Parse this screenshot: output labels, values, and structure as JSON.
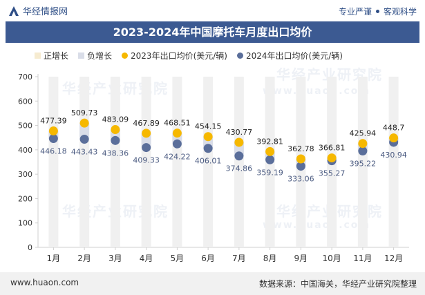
{
  "header": {
    "brand": "华经情报网",
    "tagline_left": "专业严谨",
    "tagline_right": "客观科学"
  },
  "footer": {
    "website": "www.huaon.com",
    "source": "数据来源：中国海关，华经产业研究院整理"
  },
  "watermark": {
    "text": "华经产业研究院",
    "url": "www.huaon.com"
  },
  "colors": {
    "title_bg": "#3c5a92",
    "positive_bar": "#f6ebd0",
    "negative_bar": "#d9dde8",
    "series_2023": "#f6b800",
    "series_2024": "#5a6e9a"
  },
  "chart_data": {
    "type": "line",
    "title": "2023-2024年中国摩托车月度出口均价",
    "categories": [
      "1月",
      "2月",
      "3月",
      "4月",
      "5月",
      "6月",
      "7月",
      "8月",
      "9月",
      "10月",
      "11月",
      "12月"
    ],
    "ylim": [
      0,
      700
    ],
    "yticks": [
      0,
      100,
      200,
      300,
      400,
      500,
      600,
      700
    ],
    "grid": false,
    "legend_position": "top-left",
    "legend": [
      "正增长",
      "负增长",
      "2023年出口均价(美元/辆)",
      "2024年出口均价(美元/辆)"
    ],
    "series": [
      {
        "name": "2023年出口均价(美元/辆)",
        "values": [
          477.39,
          509.73,
          483.09,
          467.89,
          468.51,
          454.15,
          430.77,
          392.81,
          362.78,
          366.81,
          425.94,
          448.7
        ]
      },
      {
        "name": "2024年出口均价(美元/辆)",
        "values": [
          446.18,
          443.43,
          438.36,
          409.33,
          424.22,
          406.01,
          374.86,
          359.19,
          333.06,
          355.27,
          395.22,
          430.94
        ]
      }
    ]
  }
}
